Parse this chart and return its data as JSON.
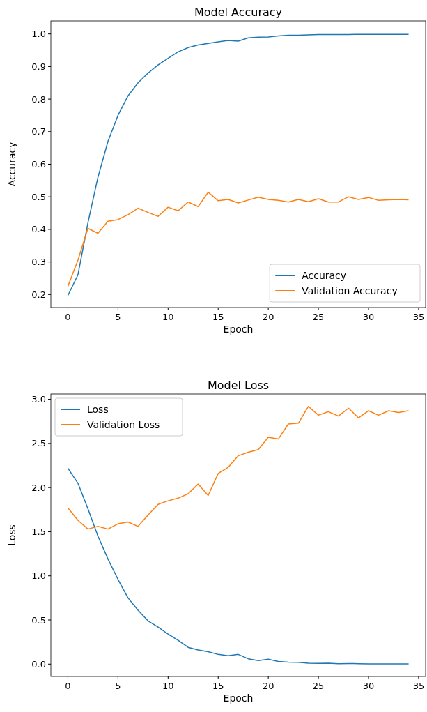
{
  "chart_data": [
    {
      "type": "line",
      "title": "Model Accuracy",
      "xlabel": "Epoch",
      "ylabel": "Accuracy",
      "x": [
        0,
        1,
        2,
        3,
        4,
        5,
        6,
        7,
        8,
        9,
        10,
        11,
        12,
        13,
        14,
        15,
        16,
        17,
        18,
        19,
        20,
        21,
        22,
        23,
        24,
        25,
        26,
        27,
        28,
        29,
        30,
        31,
        32,
        33,
        34
      ],
      "series": [
        {
          "name": "Accuracy",
          "color": "#1f77b4",
          "values": [
            0.197,
            0.26,
            0.42,
            0.56,
            0.67,
            0.75,
            0.81,
            0.85,
            0.88,
            0.905,
            0.925,
            0.945,
            0.958,
            0.966,
            0.971,
            0.976,
            0.98,
            0.978,
            0.988,
            0.99,
            0.991,
            0.994,
            0.996,
            0.996,
            0.997,
            0.998,
            0.998,
            0.998,
            0.998,
            0.999,
            0.999,
            0.999,
            0.999,
            0.999,
            0.999
          ]
        },
        {
          "name": "Validation Accuracy",
          "color": "#ff7f0e",
          "values": [
            0.225,
            0.305,
            0.403,
            0.388,
            0.425,
            0.43,
            0.445,
            0.465,
            0.452,
            0.44,
            0.468,
            0.457,
            0.484,
            0.47,
            0.514,
            0.488,
            0.492,
            0.481,
            0.49,
            0.499,
            0.492,
            0.489,
            0.484,
            0.492,
            0.485,
            0.494,
            0.484,
            0.484,
            0.5,
            0.492,
            0.498,
            0.489,
            0.491,
            0.492,
            0.491
          ]
        }
      ],
      "xlim": [
        -1.7,
        35.7
      ],
      "xticks": [
        0,
        5,
        10,
        15,
        20,
        25,
        30,
        35
      ],
      "ylim": [
        0.16,
        1.04
      ],
      "yticks": [
        {
          "value": 0.2,
          "label": "0.2"
        },
        {
          "value": 0.3,
          "label": "0.3"
        },
        {
          "value": 0.4,
          "label": "0.4"
        },
        {
          "value": 0.5,
          "label": "0.5"
        },
        {
          "value": 0.6,
          "label": "0.6"
        },
        {
          "value": 0.7,
          "label": "0.7"
        },
        {
          "value": 0.8,
          "label": "0.8"
        },
        {
          "value": 0.9,
          "label": "0.9"
        },
        {
          "value": 1.0,
          "label": "1.0"
        }
      ],
      "legend": "bottom right"
    },
    {
      "type": "line",
      "title": "Model Loss",
      "xlabel": "Epoch",
      "ylabel": "Loss",
      "x": [
        0,
        1,
        2,
        3,
        4,
        5,
        6,
        7,
        8,
        9,
        10,
        11,
        12,
        13,
        14,
        15,
        16,
        17,
        18,
        19,
        20,
        21,
        22,
        23,
        24,
        25,
        26,
        27,
        28,
        29,
        30,
        31,
        32,
        33,
        34
      ],
      "series": [
        {
          "name": "Loss",
          "color": "#1f77b4",
          "values": [
            2.22,
            2.05,
            1.76,
            1.45,
            1.19,
            0.96,
            0.75,
            0.61,
            0.49,
            0.42,
            0.34,
            0.27,
            0.19,
            0.16,
            0.14,
            0.11,
            0.095,
            0.11,
            0.06,
            0.04,
            0.055,
            0.03,
            0.022,
            0.02,
            0.01,
            0.008,
            0.01,
            0.005,
            0.006,
            0.005,
            0.003,
            0.003,
            0.003,
            0.002,
            0.002
          ]
        },
        {
          "name": "Validation Loss",
          "color": "#ff7f0e",
          "values": [
            1.77,
            1.63,
            1.53,
            1.56,
            1.53,
            1.59,
            1.61,
            1.56,
            1.69,
            1.81,
            1.85,
            1.88,
            1.93,
            2.04,
            1.91,
            2.16,
            2.23,
            2.36,
            2.4,
            2.43,
            2.57,
            2.55,
            2.72,
            2.73,
            2.92,
            2.82,
            2.86,
            2.81,
            2.9,
            2.79,
            2.87,
            2.82,
            2.87,
            2.85,
            2.87
          ]
        }
      ],
      "xlim": [
        -1.7,
        35.7
      ],
      "xticks": [
        0,
        5,
        10,
        15,
        20,
        25,
        30,
        35
      ],
      "ylim": [
        -0.14,
        3.06
      ],
      "yticks": [
        {
          "value": 0,
          "label": "0.0"
        },
        {
          "value": 0.5,
          "label": "0.5"
        },
        {
          "value": 1,
          "label": "1.0"
        },
        {
          "value": 1.5,
          "label": "1.5"
        },
        {
          "value": 2,
          "label": "2.0"
        },
        {
          "value": 2.5,
          "label": "2.5"
        },
        {
          "value": 3,
          "label": "3.0"
        }
      ],
      "legend": "top left"
    }
  ]
}
